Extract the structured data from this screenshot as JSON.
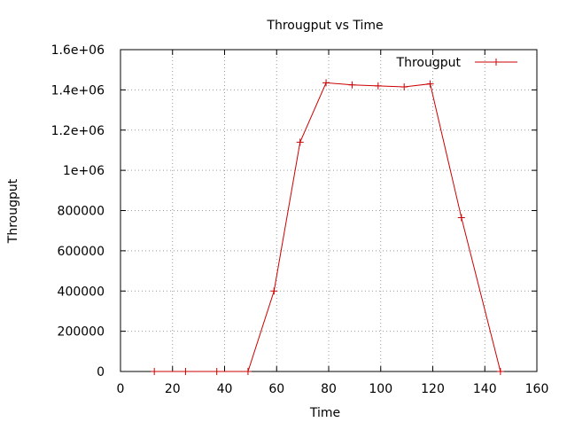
{
  "chart_data": {
    "type": "line",
    "title": "Througput vs Time",
    "xlabel": "Time",
    "ylabel": "Througput",
    "xlim": [
      0,
      160
    ],
    "ylim": [
      0,
      1600000
    ],
    "xticks": [
      0,
      20,
      40,
      60,
      80,
      100,
      120,
      140,
      160
    ],
    "xtick_labels": [
      "0",
      "20",
      "40",
      "60",
      "80",
      "100",
      "120",
      "140",
      "160"
    ],
    "yticks": [
      0,
      200000,
      400000,
      600000,
      800000,
      1000000,
      1200000,
      1400000,
      1600000
    ],
    "ytick_labels": [
      "0",
      "200000",
      "400000",
      "600000",
      "800000",
      "1e+06",
      "1.2e+06",
      "1.4e+06",
      "1.6e+06"
    ],
    "grid": true,
    "legend_position": "top-right",
    "series": [
      {
        "name": "Througput",
        "color": "#cc0000",
        "marker": "plus",
        "x": [
          13,
          25,
          37,
          49,
          59,
          69,
          79,
          89,
          99,
          109,
          119,
          131,
          146
        ],
        "y": [
          0,
          0,
          0,
          0,
          400000,
          1140000,
          1435000,
          1425000,
          1420000,
          1415000,
          1430000,
          765000,
          0
        ]
      }
    ]
  }
}
